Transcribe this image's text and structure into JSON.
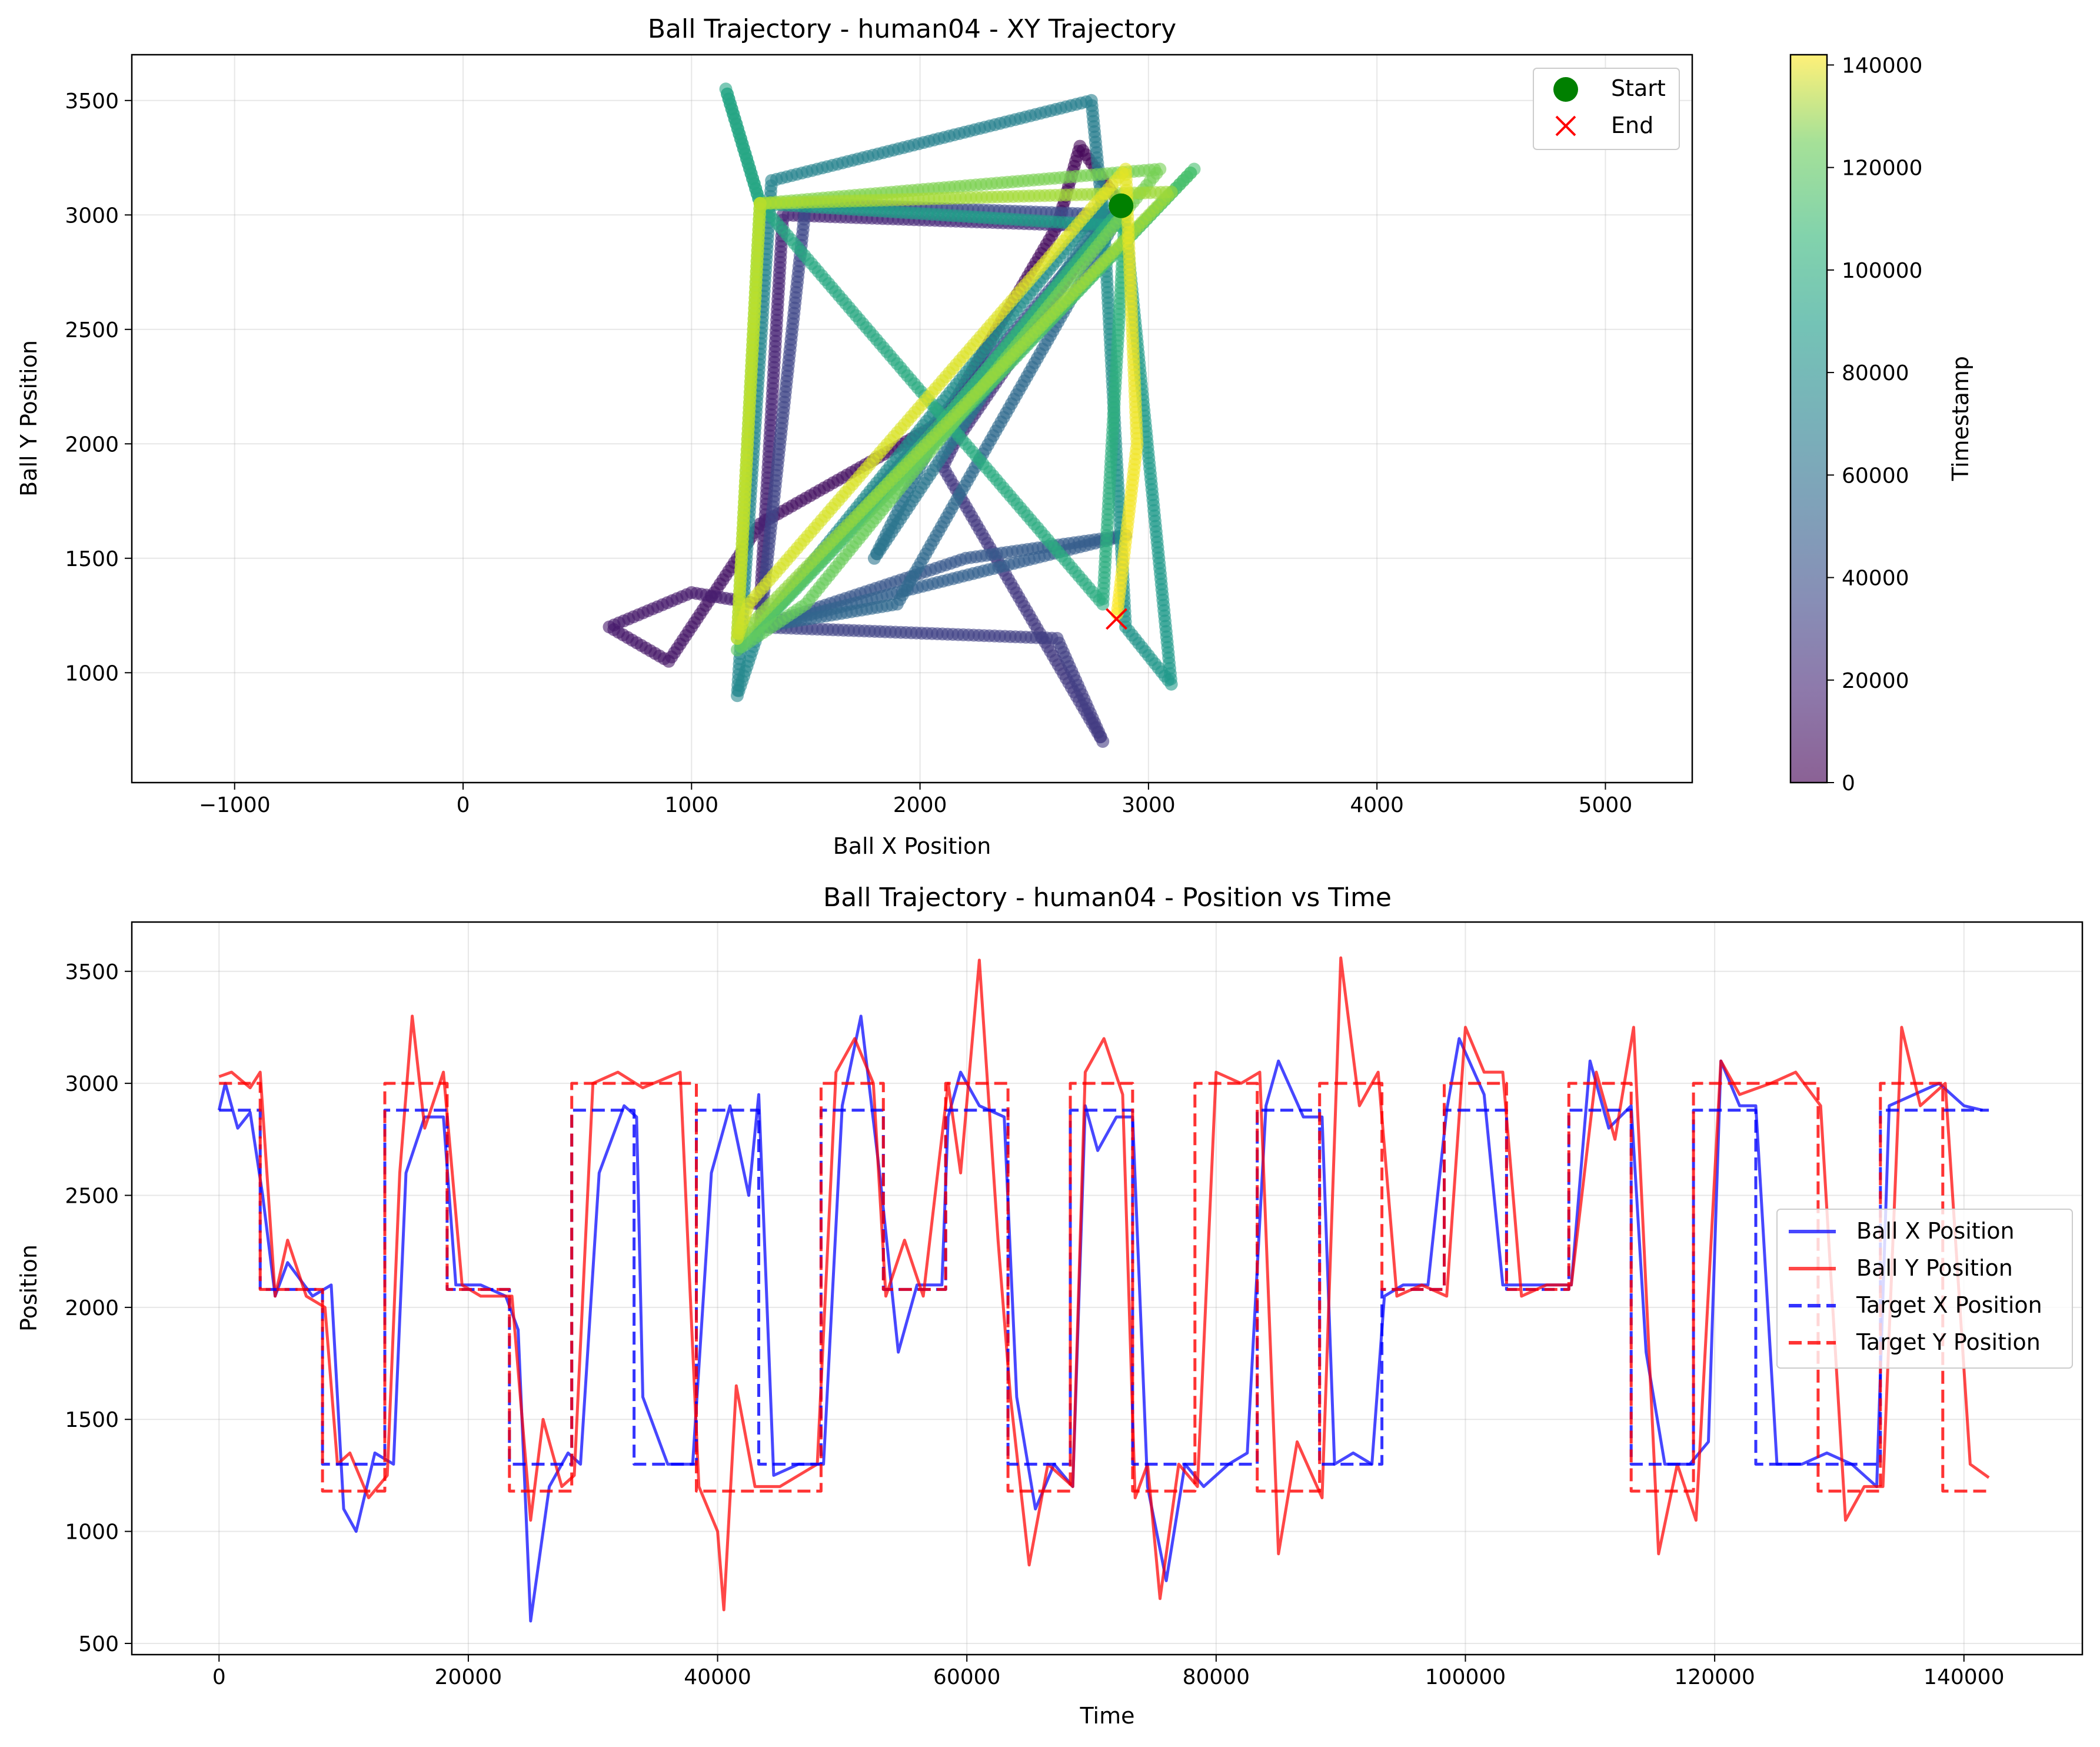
{
  "chart_data": [
    {
      "type": "scatter",
      "title": "Ball Trajectory - human04 - XY Trajectory",
      "xlabel": "Ball X Position",
      "ylabel": "Ball Y Position",
      "xlim": [
        -1450,
        5380
      ],
      "ylim": [
        520,
        3700
      ],
      "xticks": [
        -1000,
        0,
        1000,
        2000,
        3000,
        4000,
        5000
      ],
      "yticks": [
        1000,
        1500,
        2000,
        2500,
        3000,
        3500
      ],
      "grid": true,
      "legend_position": "top-right",
      "legend": [
        "Start",
        "End"
      ],
      "colorbar": {
        "label": "Timestamp",
        "range": [
          0,
          142000
        ],
        "ticks": [
          0,
          20000,
          40000,
          60000,
          80000,
          100000,
          120000,
          140000
        ],
        "colormap": "viridis"
      },
      "start_point": {
        "x": 2880,
        "y": 3040,
        "color": "#008000"
      },
      "end_point": {
        "x": 2860,
        "y": 1235,
        "color": "#ff0000"
      },
      "trajectory_waypoints": [
        {
          "t": 0,
          "x": 2880,
          "y": 3040
        },
        {
          "t": 2000,
          "x": 2700,
          "y": 3300
        },
        {
          "t": 3500,
          "x": 2600,
          "y": 2950
        },
        {
          "t": 5000,
          "x": 2100,
          "y": 2100
        },
        {
          "t": 7000,
          "x": 1300,
          "y": 1650
        },
        {
          "t": 8500,
          "x": 900,
          "y": 1050
        },
        {
          "t": 9500,
          "x": 640,
          "y": 1200
        },
        {
          "t": 11000,
          "x": 1000,
          "y": 1350
        },
        {
          "t": 13000,
          "x": 1300,
          "y": 1300
        },
        {
          "t": 15000,
          "x": 1400,
          "y": 3000
        },
        {
          "t": 18000,
          "x": 2800,
          "y": 2950
        },
        {
          "t": 20000,
          "x": 2150,
          "y": 2000
        },
        {
          "t": 23000,
          "x": 2100,
          "y": 1900
        },
        {
          "t": 25000,
          "x": 2800,
          "y": 700
        },
        {
          "t": 27000,
          "x": 2600,
          "y": 1150
        },
        {
          "t": 29000,
          "x": 1300,
          "y": 1200
        },
        {
          "t": 31000,
          "x": 1500,
          "y": 3050
        },
        {
          "t": 34000,
          "x": 2850,
          "y": 3000
        },
        {
          "t": 37000,
          "x": 1300,
          "y": 1200
        },
        {
          "t": 40000,
          "x": 2200,
          "y": 1500
        },
        {
          "t": 42000,
          "x": 2900,
          "y": 1600
        },
        {
          "t": 45000,
          "x": 1300,
          "y": 1200
        },
        {
          "t": 48000,
          "x": 1900,
          "y": 1300
        },
        {
          "t": 50000,
          "x": 2900,
          "y": 3050
        },
        {
          "t": 53000,
          "x": 2100,
          "y": 2100
        },
        {
          "t": 55000,
          "x": 1800,
          "y": 1500
        },
        {
          "t": 58000,
          "x": 2800,
          "y": 3000
        },
        {
          "t": 61000,
          "x": 2750,
          "y": 3500
        },
        {
          "t": 64000,
          "x": 1350,
          "y": 3150
        },
        {
          "t": 66000,
          "x": 1200,
          "y": 900
        },
        {
          "t": 68000,
          "x": 1300,
          "y": 1200
        },
        {
          "t": 70000,
          "x": 2800,
          "y": 3050
        },
        {
          "t": 73000,
          "x": 2900,
          "y": 1200
        },
        {
          "t": 76000,
          "x": 3100,
          "y": 950
        },
        {
          "t": 78000,
          "x": 2900,
          "y": 2950
        },
        {
          "t": 80000,
          "x": 1300,
          "y": 3050
        },
        {
          "t": 83000,
          "x": 1150,
          "y": 3550
        },
        {
          "t": 85000,
          "x": 1300,
          "y": 3050
        },
        {
          "t": 88000,
          "x": 2800,
          "y": 1300
        },
        {
          "t": 91000,
          "x": 2900,
          "y": 3050
        },
        {
          "t": 94000,
          "x": 2100,
          "y": 2100
        },
        {
          "t": 97000,
          "x": 1300,
          "y": 1200
        },
        {
          "t": 100000,
          "x": 3200,
          "y": 3200
        },
        {
          "t": 103000,
          "x": 2100,
          "y": 2050
        },
        {
          "t": 106000,
          "x": 1200,
          "y": 1100
        },
        {
          "t": 109000,
          "x": 1500,
          "y": 1300
        },
        {
          "t": 112000,
          "x": 3050,
          "y": 3200
        },
        {
          "t": 115000,
          "x": 1300,
          "y": 3050
        },
        {
          "t": 118000,
          "x": 1200,
          "y": 1150
        },
        {
          "t": 121000,
          "x": 3100,
          "y": 3100
        },
        {
          "t": 124000,
          "x": 1300,
          "y": 3050
        },
        {
          "t": 127000,
          "x": 1300,
          "y": 3050
        },
        {
          "t": 130000,
          "x": 1200,
          "y": 1150
        },
        {
          "t": 133000,
          "x": 1250,
          "y": 1300
        },
        {
          "t": 136000,
          "x": 2900,
          "y": 3200
        },
        {
          "t": 139000,
          "x": 2950,
          "y": 2000
        },
        {
          "t": 142000,
          "x": 2860,
          "y": 1235
        }
      ]
    },
    {
      "type": "line",
      "title": "Ball Trajectory - human04 - Position vs Time",
      "xlabel": "Time",
      "ylabel": "Position",
      "xlim": [
        -7000,
        149500
      ],
      "ylim": [
        450,
        3720
      ],
      "xticks": [
        0,
        20000,
        40000,
        60000,
        80000,
        100000,
        120000,
        140000
      ],
      "yticks": [
        500,
        1000,
        1500,
        2000,
        2500,
        3000,
        3500
      ],
      "grid": true,
      "legend_position": "center-right",
      "series": [
        {
          "name": "Ball X Position",
          "color": "#0000ff",
          "style": "solid",
          "x": [
            0,
            500,
            1500,
            2500,
            3500,
            4500,
            5500,
            7500,
            9000,
            10000,
            11000,
            12500,
            14000,
            15000,
            16500,
            18000,
            19000,
            21000,
            23000,
            24000,
            25000,
            26500,
            28000,
            29000,
            30500,
            32500,
            33500,
            34000,
            36000,
            38000,
            39500,
            41000,
            42500,
            43300,
            44500,
            46500,
            48500,
            50000,
            51500,
            53000,
            54500,
            56000,
            58000,
            58500,
            59500,
            61000,
            63000,
            64000,
            65500,
            67000,
            68500,
            69500,
            70500,
            72000,
            73300,
            74500,
            76000,
            77500,
            79000,
            81000,
            82500,
            84000,
            85000,
            87000,
            88500,
            89500,
            91000,
            92500,
            93500,
            95000,
            97000,
            98500,
            99500,
            101500,
            103000,
            104000,
            106000,
            108500,
            110000,
            111500,
            113300,
            114500,
            116000,
            118000,
            119500,
            120500,
            122000,
            123300,
            125000,
            127000,
            129000,
            131000,
            133000,
            134000,
            136000,
            138000,
            140000,
            141500
          ],
          "y": [
            2880,
            3000,
            2800,
            2870,
            2500,
            2050,
            2200,
            2050,
            2100,
            1100,
            1000,
            1350,
            1300,
            2600,
            2850,
            2850,
            2100,
            2100,
            2050,
            1900,
            600,
            1200,
            1350,
            1300,
            2600,
            2900,
            2850,
            1600,
            1300,
            1300,
            2600,
            2900,
            2500,
            2950,
            1250,
            1300,
            1300,
            2900,
            3300,
            2600,
            1800,
            2100,
            2100,
            2850,
            3050,
            2900,
            2850,
            1600,
            1100,
            1300,
            1200,
            2900,
            2700,
            2850,
            2850,
            1200,
            780,
            1300,
            1200,
            1300,
            1350,
            2900,
            3100,
            2850,
            2850,
            1300,
            1350,
            1300,
            2050,
            2100,
            2100,
            2880,
            3200,
            2950,
            2100,
            2100,
            2100,
            2100,
            3100,
            2800,
            2900,
            1800,
            1300,
            1300,
            1400,
            3100,
            2900,
            2900,
            1300,
            1300,
            1350,
            1300,
            1200,
            2900,
            2950,
            3000,
            2900,
            2880
          ]
        },
        {
          "name": "Ball Y Position",
          "color": "#ff0000",
          "style": "solid",
          "x": [
            0,
            1000,
            2500,
            3300,
            4500,
            5500,
            7000,
            8500,
            9500,
            10500,
            12000,
            13500,
            14500,
            15500,
            16500,
            18000,
            19500,
            21000,
            23500,
            25000,
            26000,
            27500,
            28500,
            30000,
            32000,
            34000,
            37000,
            38500,
            40000,
            40500,
            41500,
            43000,
            45000,
            48000,
            49500,
            51000,
            52500,
            53500,
            55000,
            56500,
            58500,
            59500,
            61000,
            62500,
            63500,
            65000,
            66500,
            68500,
            69500,
            71000,
            72500,
            73500,
            74500,
            75500,
            77000,
            78500,
            80000,
            82000,
            83500,
            85000,
            86500,
            88500,
            90000,
            91500,
            93000,
            94500,
            96500,
            98500,
            100000,
            101500,
            103000,
            104500,
            106500,
            108500,
            110500,
            112000,
            113500,
            115500,
            117000,
            118500,
            120500,
            122000,
            124500,
            126500,
            128500,
            130500,
            132000,
            133500,
            135000,
            136500,
            138500,
            140500,
            142000
          ],
          "y": [
            3030,
            3050,
            2980,
            3050,
            2050,
            2300,
            2050,
            2000,
            1300,
            1350,
            1150,
            1250,
            2600,
            3300,
            2800,
            3050,
            2100,
            2050,
            2050,
            1050,
            1500,
            1200,
            1250,
            3000,
            3050,
            2980,
            3050,
            1200,
            1000,
            650,
            1650,
            1200,
            1200,
            1300,
            3050,
            3200,
            3000,
            2050,
            2300,
            2050,
            3000,
            2600,
            3550,
            2300,
            1600,
            850,
            1300,
            1200,
            3050,
            3200,
            2950,
            1150,
            1300,
            700,
            1300,
            1200,
            3050,
            3000,
            3050,
            900,
            1400,
            1150,
            3560,
            2900,
            3050,
            2050,
            2100,
            2050,
            3250,
            3050,
            3050,
            2050,
            2100,
            2100,
            3050,
            2750,
            3250,
            900,
            1300,
            1050,
            3100,
            2950,
            3000,
            3050,
            2900,
            1050,
            1200,
            1200,
            3250,
            2900,
            3000,
            1300,
            1240
          ]
        },
        {
          "name": "Target X Position",
          "color": "#0000ff",
          "style": "dashed",
          "x": [
            0,
            3300,
            3300,
            8300,
            8300,
            13300,
            13300,
            18300,
            18300,
            23300,
            23300,
            28300,
            28300,
            33300,
            33300,
            38300,
            38300,
            43300,
            43300,
            48300,
            48300,
            53300,
            53300,
            58300,
            58300,
            63300,
            63300,
            68300,
            68300,
            73300,
            73300,
            78300,
            78300,
            83300,
            83300,
            88300,
            88300,
            93300,
            93300,
            98300,
            98300,
            103300,
            103300,
            108300,
            108300,
            113300,
            113300,
            118300,
            118300,
            123300,
            123300,
            128300,
            128300,
            133300,
            133300,
            142000
          ],
          "y": [
            2880,
            2880,
            2080,
            2080,
            1300,
            1300,
            2880,
            2880,
            2080,
            2080,
            1300,
            1300,
            2880,
            2880,
            1300,
            1300,
            2880,
            2880,
            1300,
            1300,
            2880,
            2880,
            2080,
            2080,
            2880,
            2880,
            1300,
            1300,
            2880,
            2880,
            1300,
            1300,
            1300,
            1300,
            2880,
            2880,
            1300,
            1300,
            2080,
            2080,
            2880,
            2880,
            2080,
            2080,
            2880,
            2880,
            1300,
            1300,
            2880,
            2880,
            1300,
            1300,
            1300,
            1300,
            2880,
            2880
          ]
        },
        {
          "name": "Target Y Position",
          "color": "#ff0000",
          "style": "dashed",
          "x": [
            0,
            3300,
            3300,
            8300,
            8300,
            13300,
            13300,
            18300,
            18300,
            23300,
            23300,
            28300,
            28300,
            33300,
            33300,
            38300,
            38300,
            43300,
            43300,
            48300,
            48300,
            53300,
            53300,
            58300,
            58300,
            63300,
            63300,
            68300,
            68300,
            73300,
            73300,
            78300,
            78300,
            83300,
            83300,
            88300,
            88300,
            93300,
            93300,
            98300,
            98300,
            103300,
            103300,
            108300,
            108300,
            113300,
            113300,
            118300,
            118300,
            123300,
            123300,
            128300,
            128300,
            133300,
            133300,
            138300,
            138300,
            142000
          ],
          "y": [
            3000,
            3000,
            2080,
            2080,
            1180,
            1180,
            3000,
            3000,
            2080,
            2080,
            1180,
            1180,
            3000,
            3000,
            3000,
            3000,
            1180,
            1180,
            1180,
            1180,
            3000,
            3000,
            2080,
            2080,
            3000,
            3000,
            1180,
            1180,
            3000,
            3000,
            1180,
            1180,
            3000,
            3000,
            1180,
            1180,
            3000,
            3000,
            2080,
            2080,
            3000,
            3000,
            2080,
            2080,
            3000,
            3000,
            1180,
            1180,
            3000,
            3000,
            3000,
            3000,
            1180,
            1180,
            3000,
            3000,
            1180,
            1180
          ]
        }
      ]
    }
  ]
}
